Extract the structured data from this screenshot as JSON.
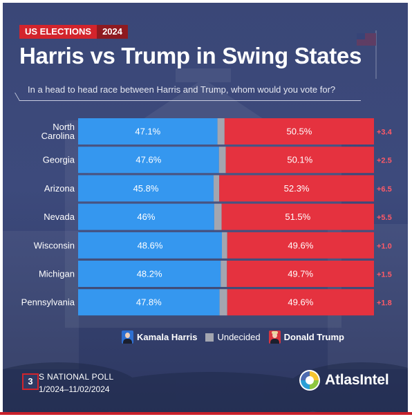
{
  "badge": {
    "left": "US ELECTIONS",
    "right": "2024"
  },
  "header": {
    "title": "Harris vs Trump in Swing States",
    "subtitle": "In a head to head race between Harris and Trump, whom would you vote for?"
  },
  "colors": {
    "harris": "#3597ef",
    "trump": "#e5323f",
    "undecided": "#a3a6b0",
    "margin_text": "#ff5a66",
    "accent_red": "#d3242c"
  },
  "chart_data": {
    "type": "bar",
    "orientation": "horizontal",
    "stacked": true,
    "categories": [
      "North Carolina",
      "Georgia",
      "Arizona",
      "Nevada",
      "Wisconsin",
      "Michigan",
      "Pennsylvania"
    ],
    "category_lines": [
      [
        "North",
        "Carolina"
      ],
      [
        "Georgia"
      ],
      [
        "Arizona"
      ],
      [
        "Nevada"
      ],
      [
        "Wisconsin"
      ],
      [
        "Michigan"
      ],
      [
        "Pennsylvania"
      ]
    ],
    "series": [
      {
        "name": "Kamala Harris",
        "values": [
          47.1,
          47.6,
          45.8,
          46,
          48.6,
          48.2,
          47.8
        ],
        "labels": [
          "47.1%",
          "47.6%",
          "45.8%",
          "46%",
          "48.6%",
          "48.2%",
          "47.8%"
        ]
      },
      {
        "name": "Undecided",
        "values": [
          2.4,
          2.3,
          1.9,
          2.5,
          1.8,
          2.1,
          2.6
        ]
      },
      {
        "name": "Donald Trump",
        "values": [
          50.5,
          50.1,
          52.3,
          51.5,
          49.6,
          49.7,
          49.6
        ],
        "labels": [
          "50.5%",
          "50.1%",
          "52.3%",
          "51.5%",
          "49.6%",
          "49.7%",
          "49.6%"
        ]
      }
    ],
    "margins": [
      "+3.4",
      "+2.5",
      "+6.5",
      "+5.5",
      "+1.0",
      "+1.5",
      "+1.8"
    ],
    "xlim": [
      0,
      100
    ],
    "legend_position": "bottom"
  },
  "legend": {
    "harris": "Kamala Harris",
    "undecided": "Undecided",
    "trump": "Donald Trump"
  },
  "footer": {
    "number": "3",
    "poll": "S NATIONAL POLL",
    "dates": "1/2024–11/02/2024",
    "logo": "AtlasIntel"
  }
}
